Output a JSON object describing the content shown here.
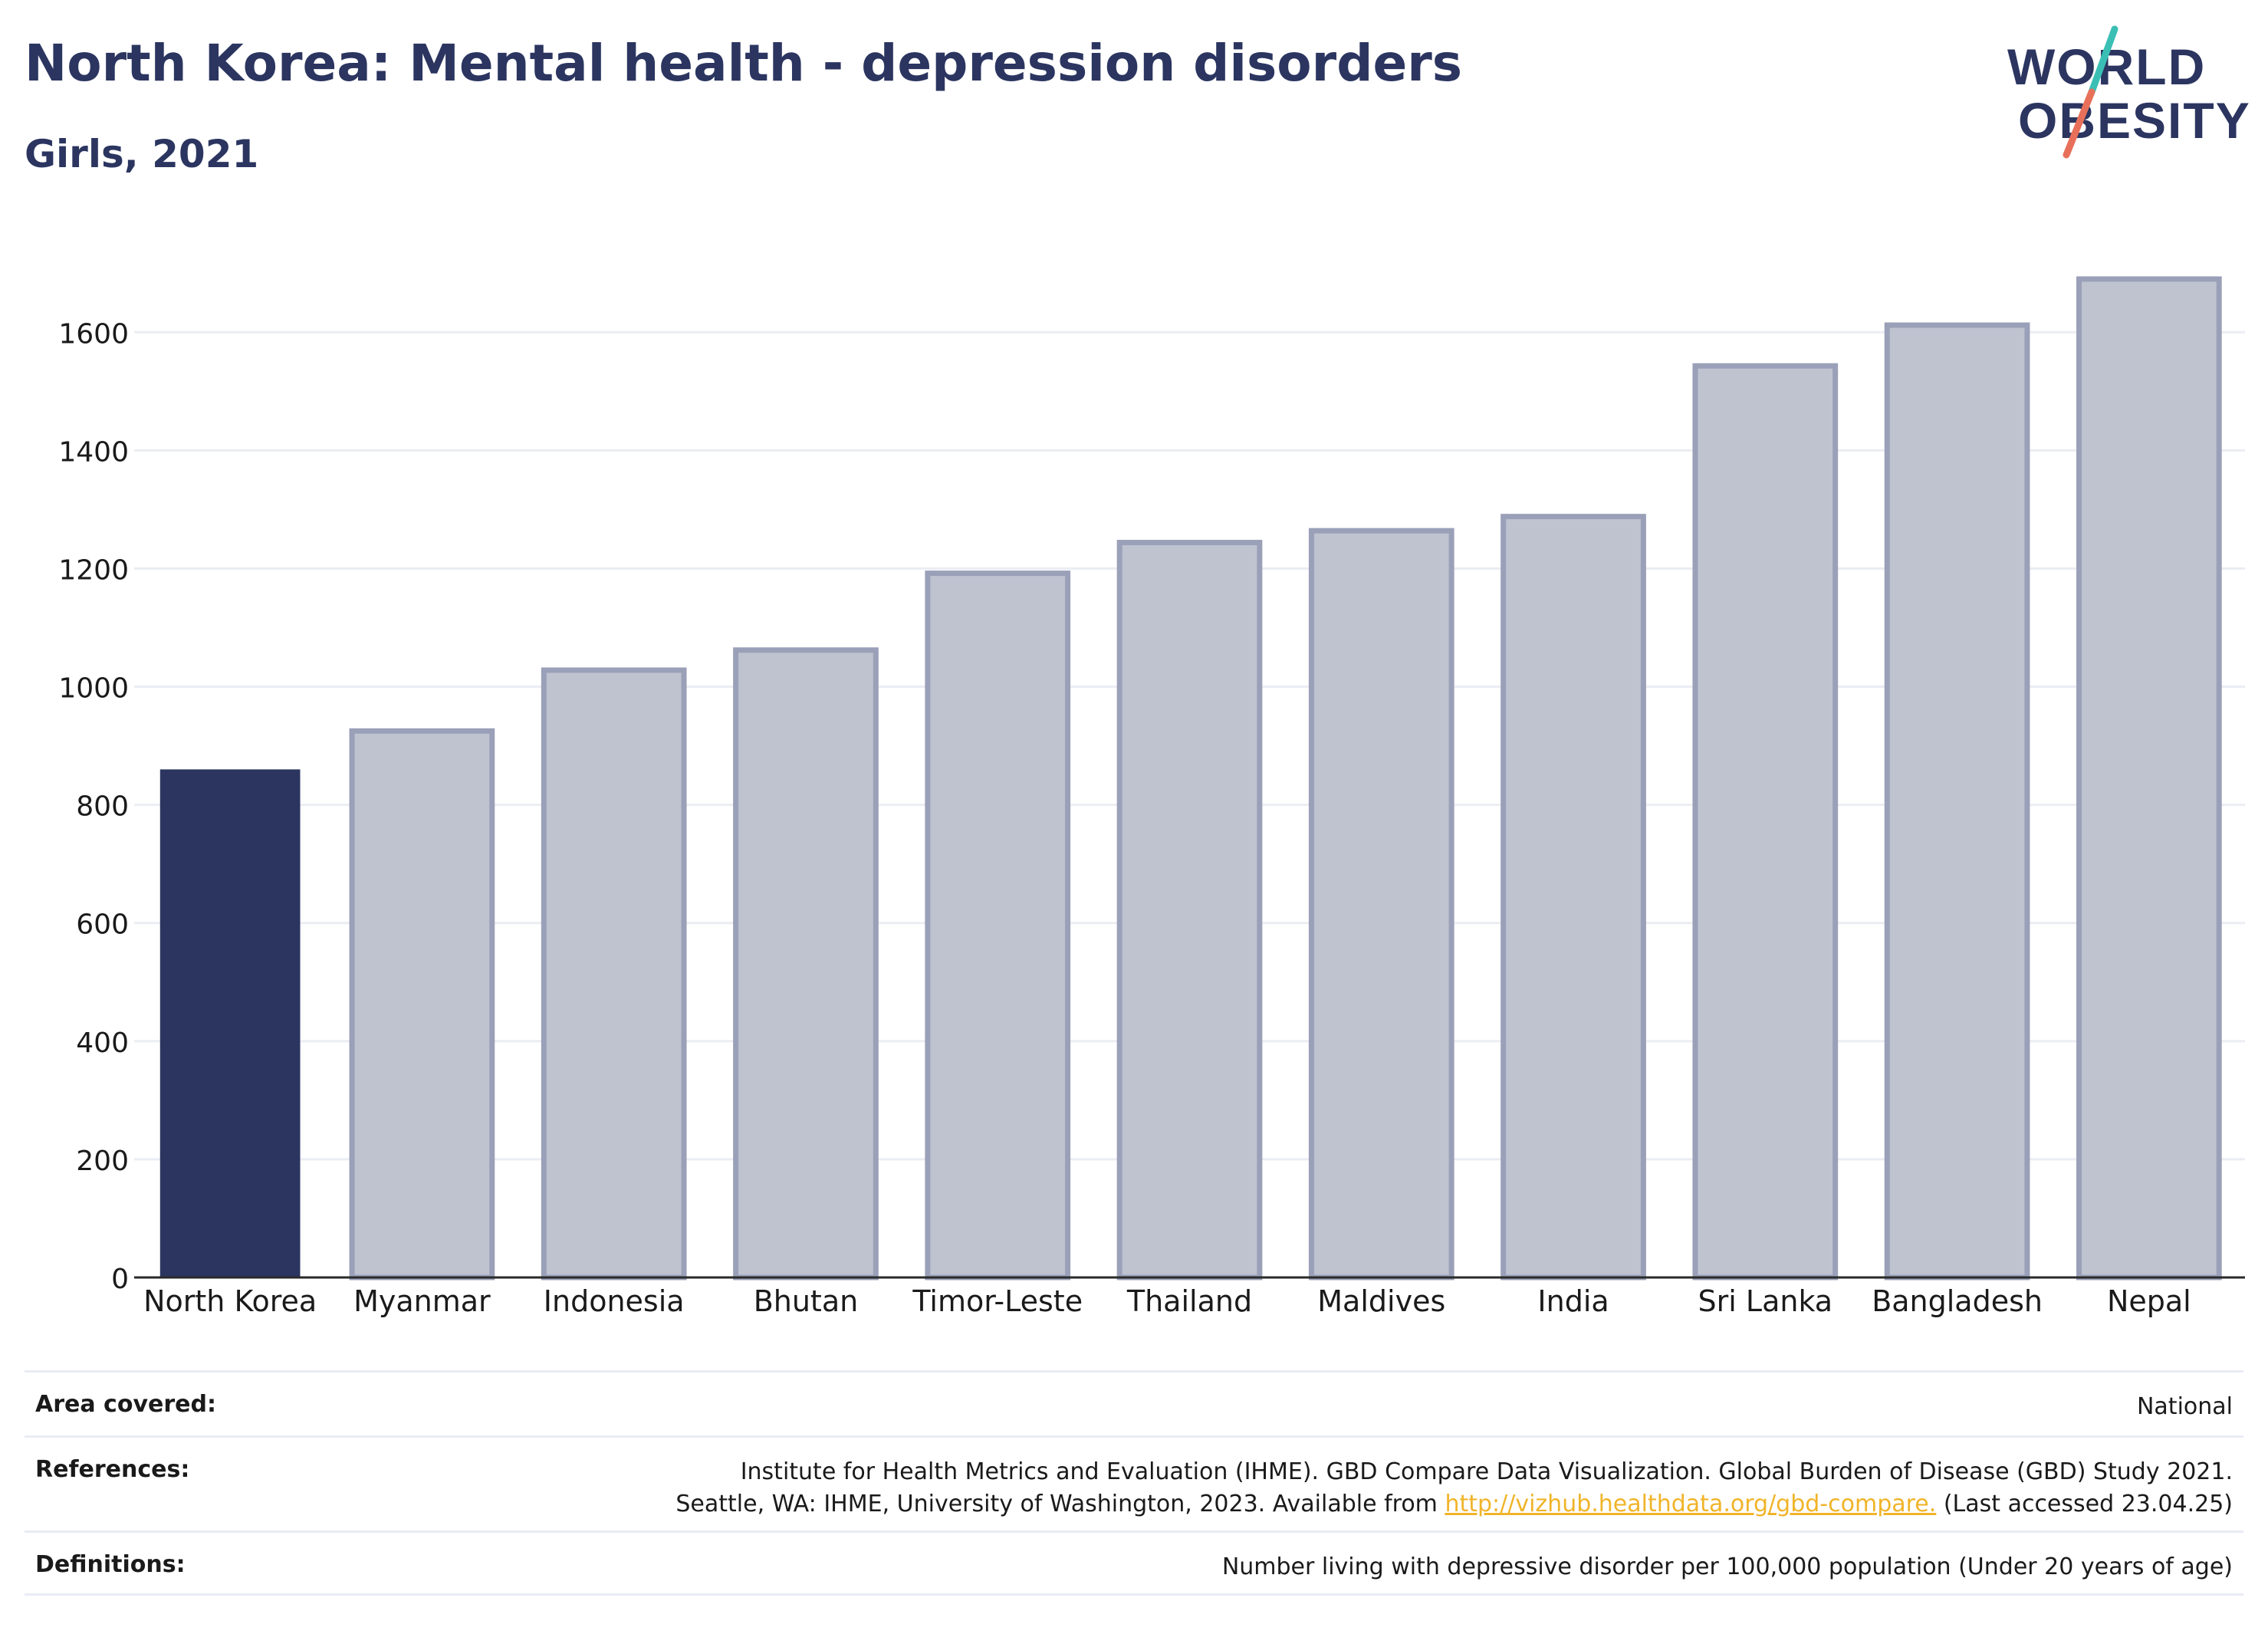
{
  "header": {
    "title": "North Korea: Mental health - depression disorders",
    "subtitle": "Girls, 2021"
  },
  "logo": {
    "line1": "WORLD",
    "line2": "OBESITY",
    "colors": {
      "text": "#2b3560",
      "slash_top": "#3bbfb5",
      "slash_bottom": "#e8705a"
    }
  },
  "chart_data": {
    "type": "bar",
    "categories": [
      "North Korea",
      "Myanmar",
      "Indonesia",
      "Bhutan",
      "Timor-Leste",
      "Thailand",
      "Maldives",
      "India",
      "Sri Lanka",
      "Bangladesh",
      "Nepal"
    ],
    "values": [
      860,
      925,
      1028,
      1062,
      1192,
      1244,
      1264,
      1288,
      1543,
      1612,
      1690
    ],
    "highlight_index": 0,
    "yticks": [
      0,
      200,
      400,
      600,
      800,
      1000,
      1200,
      1400,
      1600
    ],
    "ylim": [
      0,
      1760
    ],
    "grid": true,
    "legend": "none",
    "colors": {
      "highlight": "#2b3560",
      "other_fill": "#bfc3d0",
      "other_stroke": "#9aa0b8",
      "grid": "#ebedf3",
      "axis": "#2a2a2a"
    }
  },
  "meta": {
    "area_label": "Area covered:",
    "area_value": "National",
    "references_label": "References:",
    "references_line1": "Institute for Health Metrics and Evaluation (IHME). GBD Compare Data Visualization. Global Burden of Disease (GBD) Study 2021.",
    "references_line2_prefix": "Seattle, WA: IHME, University of Washington, 2023. Available from ",
    "references_link": "http://vizhub.healthdata.org/gbd-compare.",
    "references_line2_suffix": " (Last accessed 23.04.25)",
    "definitions_label": "Definitions:",
    "definitions_value": "Number living with depressive disorder per 100,000 population (Under 20 years of age)"
  }
}
